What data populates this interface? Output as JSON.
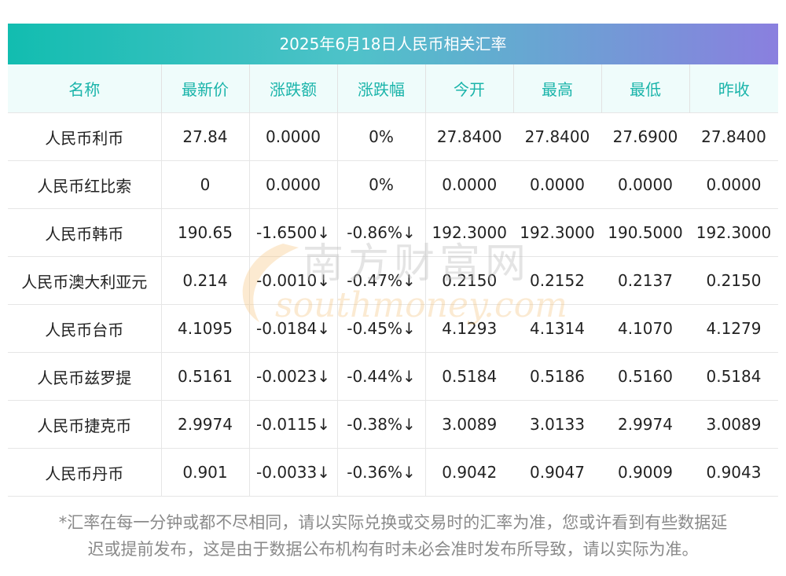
{
  "title": "2025年6月18日人民币相关汇率",
  "headers": [
    "名称",
    "最新价",
    "涨跌额",
    "涨跌幅",
    "今开",
    "最高",
    "最低",
    "昨收"
  ],
  "rows": [
    {
      "name": "人民币利币",
      "latest": "27.84",
      "change": "0.0000",
      "pct": "0%",
      "open": "27.8400",
      "high": "27.8400",
      "low": "27.6900",
      "prev": "27.8400",
      "trend": "flat"
    },
    {
      "name": "人民币红比索",
      "latest": "0",
      "change": "0.0000",
      "pct": "0%",
      "open": "0.0000",
      "high": "0.0000",
      "low": "0.0000",
      "prev": "0.0000",
      "trend": "flat"
    },
    {
      "name": "人民币韩币",
      "latest": "190.65",
      "change": "-1.6500↓",
      "pct": "-0.86%↓",
      "open": "192.3000",
      "high": "192.3000",
      "low": "190.5000",
      "prev": "192.3000",
      "trend": "down"
    },
    {
      "name": "人民币澳大利亚元",
      "latest": "0.214",
      "change": "-0.0010↓",
      "pct": "-0.47%↓",
      "open": "0.2150",
      "high": "0.2152",
      "low": "0.2137",
      "prev": "0.2150",
      "trend": "down"
    },
    {
      "name": "人民币台币",
      "latest": "4.1095",
      "change": "-0.0184↓",
      "pct": "-0.45%↓",
      "open": "4.1293",
      "high": "4.1314",
      "low": "4.1070",
      "prev": "4.1279",
      "trend": "down"
    },
    {
      "name": "人民币兹罗提",
      "latest": "0.5161",
      "change": "-0.0023↓",
      "pct": "-0.44%↓",
      "open": "0.5184",
      "high": "0.5186",
      "low": "0.5160",
      "prev": "0.5184",
      "trend": "down"
    },
    {
      "name": "人民币捷克币",
      "latest": "2.9974",
      "change": "-0.0115↓",
      "pct": "-0.38%↓",
      "open": "3.0089",
      "high": "3.0133",
      "low": "2.9974",
      "prev": "3.0089",
      "trend": "down"
    },
    {
      "name": "人民币丹币",
      "latest": "0.901",
      "change": "-0.0033↓",
      "pct": "-0.36%↓",
      "open": "0.9042",
      "high": "0.9047",
      "low": "0.9009",
      "prev": "0.9043",
      "trend": "down"
    }
  ],
  "watermark": {
    "cn": "南方财富网",
    "en": "southmoney.com"
  },
  "footnote": {
    "line1": "*汇率在每一分钟或都不尽相同，请以实际兑换或交易时的汇率为准，您或许看到有些数据延",
    "line2": "迟或提前发布，这是由于数据公布机构有时未必会准时发布所导致，请以实际为准。"
  },
  "colors": {
    "header_text": "#1ab4aa",
    "down": "#1d8a1d",
    "title_start": "#12bdb0",
    "title_end": "#8a7fdf"
  }
}
